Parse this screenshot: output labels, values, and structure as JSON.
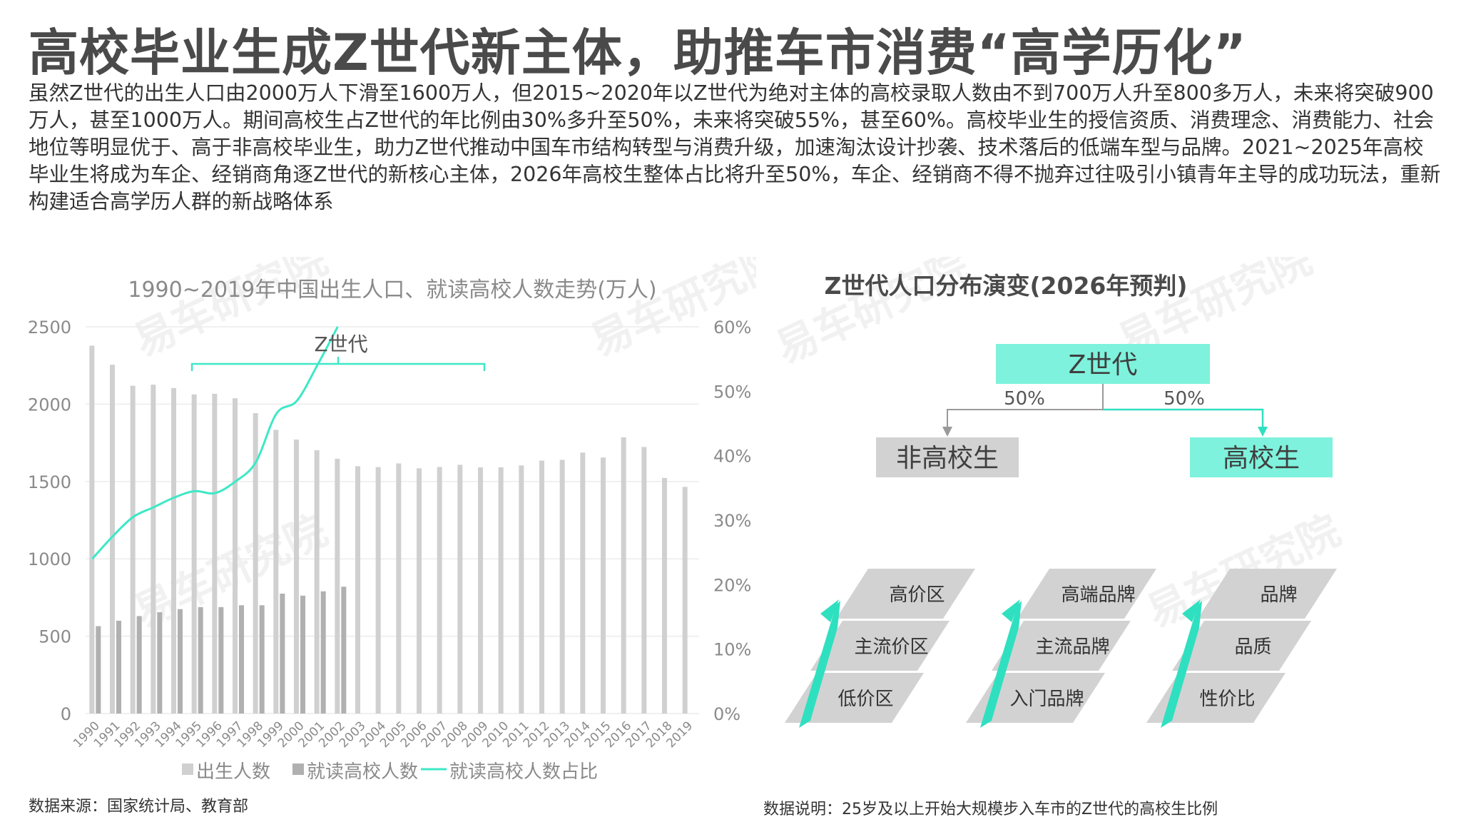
{
  "headline": "高校毕业生成Z世代新主体，助推车市消费“高学历化”",
  "body_text": "虽然Z世代的出生人口由2000万人下滑至1600万人，但2015~2020年以Z世代为绝对主体的高校录取人数由不到700万人升至800多万人，未来将突破900万人，甚至1000万人。期间高校生占Z世代的年比例由30%多升至50%，未来将突破55%，甚至60%。高校毕业生的授信资质、消费理念、消费能力、社会地位等明显优于、高于非高校毕业生，助力Z世代推动中国车市结构转型与消费升级，加速淘汰设计抄袭、技术落后的低端车型与品牌。2021~2025年高校毕业生将成为车企、经销商角逐Z世代的新核心主体，2026年高校生整体占比将升至50%，车企、经销商不得不抛弃过往吸引小镇青年主导的成功玩法，重新构建适合高学历人群的新战略体系",
  "watermark": "易车研究院",
  "chart_data": {
    "type": "bar",
    "title": "1990~2019年中国出生人口、就读高校人数走势(万人)",
    "categories": [
      "1990",
      "1991",
      "1992",
      "1993",
      "1994",
      "1995",
      "1996",
      "1997",
      "1998",
      "1999",
      "2000",
      "2001",
      "2002",
      "2003",
      "2004",
      "2005",
      "2006",
      "2007",
      "2008",
      "2009",
      "2010",
      "2011",
      "2012",
      "2013",
      "2014",
      "2015",
      "2016",
      "2017",
      "2018",
      "2019"
    ],
    "series": [
      {
        "name": "出生人数",
        "type": "bar",
        "axis": "left",
        "color": "#d0d0d0",
        "values": [
          2378,
          2255,
          2119,
          2126,
          2104,
          2063,
          2067,
          2038,
          1942,
          1834,
          1771,
          1702,
          1647,
          1599,
          1593,
          1617,
          1585,
          1594,
          1608,
          1591,
          1592,
          1604,
          1635,
          1640,
          1687,
          1655,
          1786,
          1723,
          1523,
          1465
        ]
      },
      {
        "name": "就读高校人数",
        "type": "bar",
        "axis": "left",
        "color": "#b0b0b0",
        "values": [
          565,
          600,
          630,
          655,
          675,
          688,
          688,
          700,
          700,
          775,
          762,
          790,
          820,
          null,
          null,
          null,
          null,
          null,
          null,
          null,
          null,
          null,
          null,
          null,
          null,
          null,
          null,
          null,
          null,
          null
        ]
      },
      {
        "name": "就读高校人数占比",
        "type": "line",
        "axis": "right",
        "color": "#3ee8c6",
        "values": [
          24,
          27.5,
          30.5,
          32,
          33.5,
          34.5,
          34.2,
          36,
          39,
          46.5,
          48.5,
          54,
          60,
          null,
          null,
          null,
          null,
          null,
          null,
          null,
          null,
          null,
          null,
          null,
          null,
          null,
          null,
          null,
          null,
          null
        ]
      }
    ],
    "ylim": [
      0,
      2500
    ],
    "yticks": [
      "2500",
      "2000",
      "1500",
      "1000",
      "500",
      "0"
    ],
    "y2lim": [
      0,
      60
    ],
    "y2ticks": [
      "60%",
      "50%",
      "40%",
      "30%",
      "20%",
      "10%",
      "0%"
    ],
    "annotation": "Z世代",
    "legend": "bottom"
  },
  "source": "数据来源：国家统计局、教育部",
  "diagram": {
    "title": "Z世代人口分布演变(2026年预判)",
    "root": "Z世代",
    "left_pct": "50%",
    "right_pct": "50%",
    "left_node": "非高校生",
    "right_node": "高校生",
    "tiers": [
      {
        "items": [
          "高价区",
          "主流价区",
          "低价区"
        ]
      },
      {
        "items": [
          "高端品牌",
          "主流品牌",
          "入门品牌"
        ]
      },
      {
        "items": [
          "品牌",
          "品质",
          "性价比"
        ]
      }
    ],
    "colors": {
      "teal": "#7ef2dc",
      "gray": "#d2d2d2",
      "arrow": "#2fe0c0"
    }
  },
  "note": "数据说明：25岁及以上开始大规模步入车市的Z世代的高校生比例"
}
